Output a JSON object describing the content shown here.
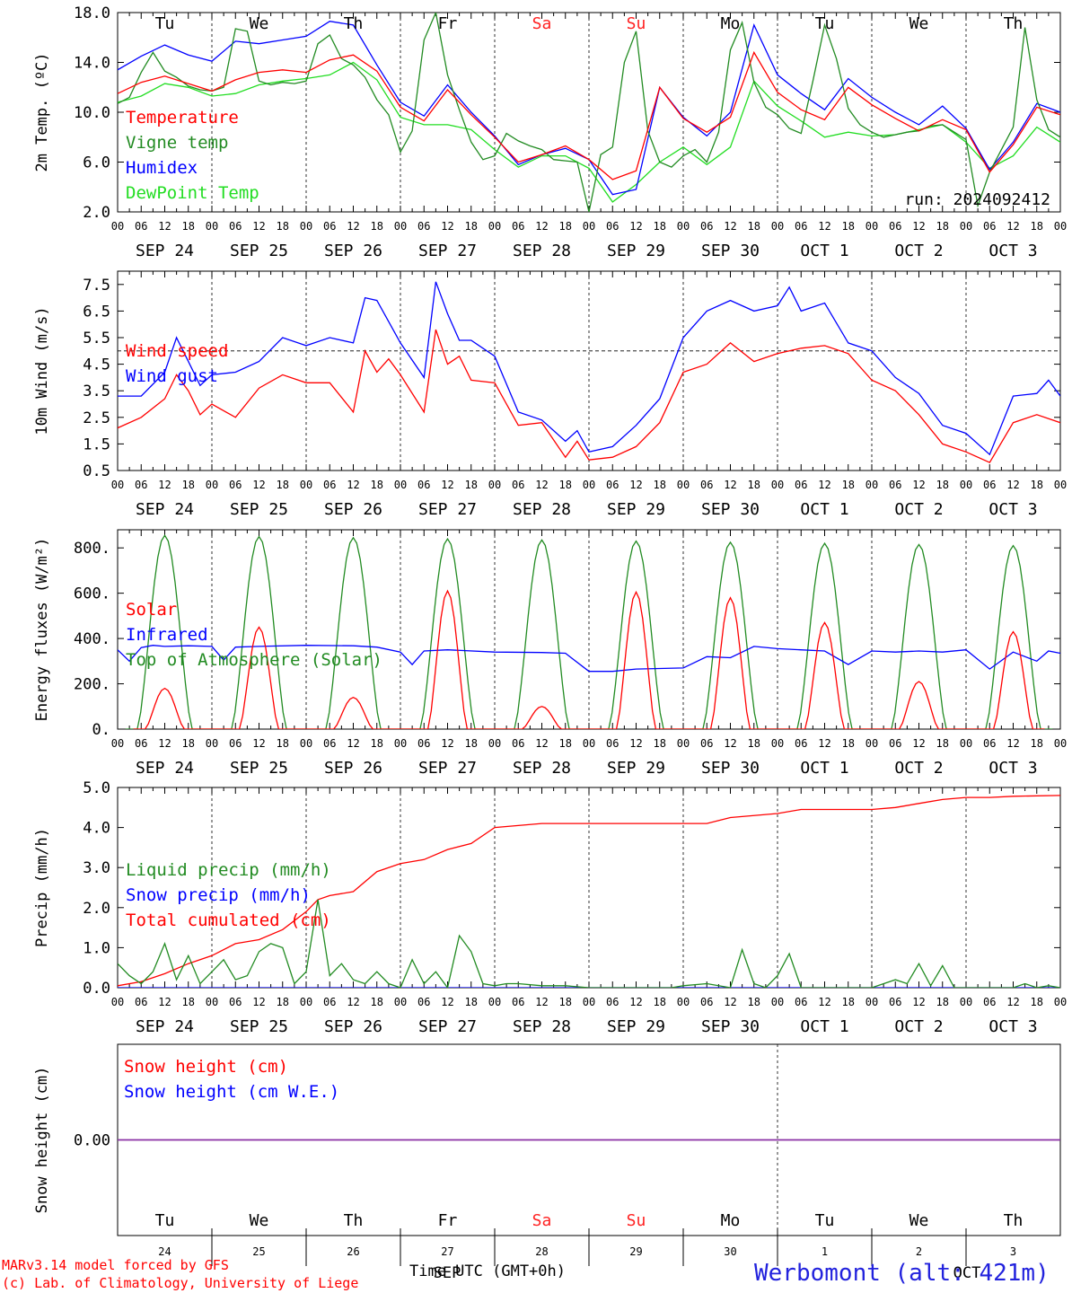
{
  "days_of_week": [
    "Tu",
    "We",
    "Th",
    "Fr",
    "Sa",
    "Su",
    "Mo",
    "Tu",
    "We",
    "Th"
  ],
  "date_labels": [
    "SEP 24",
    "SEP 25",
    "SEP 26",
    "SEP 27",
    "SEP 28",
    "SEP 29",
    "SEP 30",
    "OCT  1",
    "OCT  2",
    "OCT  3"
  ],
  "hour_ticks": [
    "00",
    "06",
    "12",
    "18"
  ],
  "weekend_color": "#ff2222",
  "run_label": "run: 2024092412",
  "footer": {
    "line1": "MARv3.14 model forced by GFS",
    "line2": "(c) Lab. of Climatology, University of Liege",
    "time_label": "Time UTC (GMT+0h)",
    "month_label_sep": "SEP",
    "month_label_oct": "OCT",
    "station": "Werbomont (alt: 421m)",
    "day_numbers": [
      "24",
      "25",
      "26",
      "27",
      "28",
      "29",
      "30",
      "1",
      "2",
      "3"
    ]
  },
  "chart_data": [
    {
      "type": "line",
      "ylabel": "2m Temp. (ºC)",
      "ylim": [
        2,
        18
      ],
      "yticks": [
        "2.0",
        "6.0",
        "10.0",
        "14.0",
        "18.0"
      ],
      "x_unit": "hours since SEP 24 00 UTC",
      "series": [
        {
          "name": "Temperature",
          "color": "#ff0000",
          "x": [
            0,
            6,
            12,
            18,
            24,
            30,
            36,
            42,
            48,
            54,
            60,
            66,
            72,
            78,
            84,
            90,
            96,
            102,
            108,
            114,
            120,
            126,
            132,
            138,
            144,
            150,
            156,
            162,
            168,
            174,
            180,
            186,
            192,
            198,
            204,
            210,
            216,
            222,
            228,
            234,
            240
          ],
          "y": [
            11.5,
            12.4,
            12.9,
            12.3,
            11.7,
            12.6,
            13.2,
            13.4,
            13.2,
            14.2,
            14.6,
            13.3,
            10.4,
            9.3,
            11.8,
            9.8,
            8.0,
            6.0,
            6.6,
            7.3,
            6.2,
            4.6,
            5.3,
            12.0,
            9.5,
            8.4,
            9.6,
            14.8,
            11.6,
            10.2,
            9.4,
            12.0,
            10.6,
            9.5,
            8.5,
            9.4,
            8.6,
            5.2,
            7.4,
            10.4,
            9.8
          ]
        },
        {
          "name": "Vigne temp",
          "color": "#228b22",
          "x": [
            0,
            3,
            6,
            9,
            12,
            15,
            18,
            21,
            24,
            27,
            30,
            33,
            36,
            39,
            42,
            45,
            48,
            51,
            54,
            57,
            60,
            63,
            66,
            69,
            72,
            75,
            78,
            81,
            84,
            87,
            90,
            93,
            96,
            99,
            102,
            105,
            108,
            111,
            114,
            117,
            120,
            123,
            126,
            129,
            132,
            135,
            138,
            141,
            144,
            147,
            150,
            153,
            156,
            159,
            162,
            165,
            168,
            171,
            174,
            177,
            180,
            183,
            186,
            189,
            192,
            195,
            198,
            201,
            204,
            207,
            210,
            213,
            216,
            219,
            222,
            225,
            228,
            231,
            234,
            237,
            240
          ],
          "y": [
            10.7,
            11.2,
            13.2,
            14.8,
            13.3,
            12.8,
            12.1,
            11.8,
            11.7,
            12.0,
            16.7,
            16.5,
            12.5,
            12.2,
            12.4,
            12.3,
            12.5,
            15.5,
            16.2,
            14.3,
            13.8,
            12.8,
            11.0,
            9.8,
            6.8,
            8.5,
            15.8,
            18.0,
            13.0,
            10.2,
            7.6,
            6.2,
            6.5,
            8.3,
            7.7,
            7.3,
            7.0,
            6.2,
            6.1,
            6.0,
            2.0,
            6.6,
            7.2,
            14.0,
            16.5,
            8.5,
            6.0,
            5.6,
            6.5,
            7.0,
            6.0,
            8.4,
            15.0,
            17.2,
            12.4,
            10.4,
            9.8,
            8.7,
            8.3,
            12.5,
            17.0,
            14.3,
            10.3,
            9.0,
            8.4,
            8.0,
            8.2,
            8.4,
            8.5,
            8.9,
            9.0,
            8.4,
            7.8,
            2.5,
            5.2,
            7.0,
            8.8,
            16.8,
            11.0,
            8.6,
            8.0
          ]
        },
        {
          "name": "Humidex",
          "color": "#0000ff",
          "x": [
            0,
            6,
            12,
            18,
            24,
            30,
            36,
            42,
            48,
            54,
            60,
            66,
            72,
            78,
            84,
            90,
            96,
            102,
            108,
            114,
            120,
            126,
            132,
            138,
            144,
            150,
            156,
            162,
            168,
            174,
            180,
            186,
            192,
            198,
            204,
            210,
            216,
            222,
            228,
            234,
            240
          ],
          "y": [
            13.4,
            14.5,
            15.4,
            14.6,
            14.1,
            15.7,
            15.5,
            15.8,
            16.1,
            17.3,
            17.0,
            13.8,
            10.8,
            9.7,
            12.2,
            10.0,
            8.1,
            5.8,
            6.6,
            7.1,
            6.2,
            3.4,
            3.8,
            12.0,
            9.6,
            8.1,
            10.0,
            17.0,
            13.0,
            11.5,
            10.2,
            12.7,
            11.2,
            10.0,
            9.0,
            10.5,
            8.7,
            5.4,
            7.6,
            10.7,
            10.0
          ]
        },
        {
          "name": "DewPoint Temp",
          "color": "#22dd22",
          "x": [
            0,
            6,
            12,
            18,
            24,
            30,
            36,
            42,
            48,
            54,
            60,
            66,
            72,
            78,
            84,
            90,
            96,
            102,
            108,
            114,
            120,
            126,
            132,
            138,
            144,
            150,
            156,
            162,
            168,
            174,
            180,
            186,
            192,
            198,
            204,
            210,
            216,
            222,
            228,
            234,
            240
          ],
          "y": [
            10.8,
            11.3,
            12.3,
            12.0,
            11.3,
            11.5,
            12.2,
            12.5,
            12.7,
            13.0,
            14.0,
            12.6,
            9.6,
            9.0,
            9.0,
            8.6,
            7.0,
            5.6,
            6.5,
            6.5,
            5.5,
            2.8,
            4.2,
            6.0,
            7.2,
            5.8,
            7.2,
            12.5,
            10.5,
            9.3,
            8.0,
            8.4,
            8.1,
            8.2,
            8.6,
            9.0,
            7.6,
            5.5,
            6.5,
            8.8,
            7.6
          ]
        }
      ]
    },
    {
      "type": "line",
      "ylabel": "10m Wind (m/s)",
      "ylim": [
        0.5,
        8
      ],
      "yticks": [
        "0.5",
        "1.5",
        "2.5",
        "3.5",
        "4.5",
        "5.5",
        "6.5",
        "7.5"
      ],
      "reference_line": 5,
      "x_unit": "hours since SEP 24 00 UTC",
      "series": [
        {
          "name": "Wind speed",
          "color": "#ff0000",
          "x": [
            0,
            6,
            12,
            15,
            18,
            21,
            24,
            30,
            36,
            42,
            48,
            54,
            60,
            63,
            66,
            69,
            72,
            78,
            81,
            84,
            87,
            90,
            96,
            102,
            108,
            114,
            117,
            120,
            126,
            132,
            138,
            144,
            150,
            156,
            162,
            168,
            174,
            180,
            186,
            192,
            198,
            204,
            210,
            216,
            222,
            228,
            234,
            240
          ],
          "y": [
            2.1,
            2.5,
            3.2,
            4.1,
            3.5,
            2.6,
            3.0,
            2.5,
            3.6,
            4.1,
            3.8,
            3.8,
            2.7,
            5.0,
            4.2,
            4.7,
            4.1,
            2.7,
            5.8,
            4.5,
            4.8,
            3.9,
            3.8,
            2.2,
            2.3,
            1.0,
            1.6,
            0.9,
            1.0,
            1.4,
            2.3,
            4.2,
            4.5,
            5.3,
            4.6,
            4.9,
            5.1,
            5.2,
            4.9,
            3.9,
            3.5,
            2.6,
            1.5,
            1.2,
            0.8,
            2.3,
            2.6,
            2.3
          ]
        },
        {
          "name": "Wind gust",
          "color": "#0000ff",
          "x": [
            0,
            6,
            12,
            15,
            18,
            21,
            24,
            30,
            36,
            42,
            48,
            54,
            60,
            63,
            66,
            69,
            72,
            78,
            81,
            84,
            87,
            90,
            96,
            102,
            108,
            114,
            117,
            120,
            126,
            132,
            138,
            144,
            150,
            156,
            162,
            168,
            171,
            174,
            180,
            186,
            192,
            198,
            204,
            210,
            216,
            222,
            228,
            234,
            237,
            240
          ],
          "y": [
            3.3,
            3.3,
            4.2,
            5.5,
            4.6,
            3.7,
            4.1,
            4.2,
            4.6,
            5.5,
            5.2,
            5.5,
            5.3,
            7.0,
            6.9,
            6.1,
            5.3,
            4.0,
            7.6,
            6.4,
            5.4,
            5.4,
            4.8,
            2.7,
            2.4,
            1.6,
            2.0,
            1.2,
            1.4,
            2.2,
            3.2,
            5.5,
            6.5,
            6.9,
            6.5,
            6.7,
            7.4,
            6.5,
            6.8,
            5.3,
            5.0,
            4.0,
            3.4,
            2.2,
            1.9,
            1.1,
            3.3,
            3.4,
            3.9,
            3.3
          ]
        }
      ]
    },
    {
      "type": "line",
      "ylabel": "Energy fluxes (W/m²)",
      "ylim": [
        0,
        880
      ],
      "yticks": [
        "0.",
        "200.",
        "400.",
        "600.",
        "800."
      ],
      "x_unit": "hours since SEP 24 00 UTC",
      "series": [
        {
          "name": "Solar",
          "color": "#ff0000",
          "peaks": [
            180,
            450,
            140,
            610,
            100,
            605,
            580,
            470,
            210,
            430
          ],
          "peak_hour": 12
        },
        {
          "name": "Infrared",
          "color": "#0000ff",
          "x": [
            0,
            3,
            6,
            9,
            12,
            18,
            24,
            27,
            30,
            36,
            48,
            60,
            66,
            72,
            75,
            78,
            84,
            96,
            108,
            114,
            120,
            126,
            132,
            144,
            150,
            156,
            162,
            168,
            180,
            186,
            192,
            198,
            204,
            210,
            216,
            222,
            228,
            234,
            237,
            240
          ],
          "y": [
            350,
            300,
            360,
            370,
            365,
            368,
            365,
            305,
            362,
            365,
            370,
            368,
            362,
            340,
            285,
            345,
            350,
            340,
            338,
            335,
            255,
            255,
            265,
            270,
            320,
            315,
            365,
            355,
            345,
            285,
            345,
            340,
            345,
            340,
            350,
            265,
            340,
            300,
            345,
            335
          ]
        },
        {
          "name": "Top of Atmosphere (Solar)",
          "color": "#228b22",
          "peaks": [
            855,
            850,
            845,
            840,
            835,
            830,
            825,
            820,
            815,
            810
          ],
          "peak_hour": 12
        }
      ]
    },
    {
      "type": "line",
      "ylabel": "Precip (mm/h)",
      "ylim": [
        0,
        5
      ],
      "yticks": [
        "0.0",
        "1.0",
        "2.0",
        "3.0",
        "4.0",
        "5.0"
      ],
      "x_unit": "hours since SEP 24 00 UTC",
      "series": [
        {
          "name": "Liquid precip (mm/h)",
          "color": "#228b22",
          "x": [
            0,
            3,
            6,
            9,
            12,
            15,
            18,
            21,
            24,
            27,
            30,
            33,
            36,
            39,
            42,
            45,
            48,
            51,
            54,
            57,
            60,
            63,
            66,
            69,
            72,
            75,
            78,
            81,
            84,
            87,
            90,
            93,
            96,
            99,
            102,
            108,
            114,
            120,
            126,
            132,
            138,
            141,
            144,
            150,
            156,
            159,
            162,
            165,
            168,
            171,
            174,
            177,
            180,
            186,
            192,
            198,
            201,
            204,
            207,
            210,
            213,
            216,
            219,
            222,
            225,
            228,
            231,
            234,
            237,
            240
          ],
          "y": [
            0.6,
            0.3,
            0.1,
            0.4,
            1.1,
            0.2,
            0.8,
            0.1,
            0.4,
            0.7,
            0.2,
            0.3,
            0.9,
            1.1,
            1.0,
            0.1,
            0.4,
            2.2,
            0.3,
            0.6,
            0.2,
            0.1,
            0.4,
            0.1,
            0.0,
            0.7,
            0.1,
            0.4,
            0.0,
            1.3,
            0.9,
            0.1,
            0.05,
            0.1,
            0.1,
            0.05,
            0.05,
            0.0,
            0.0,
            0.0,
            0.0,
            0.0,
            0.05,
            0.1,
            0.0,
            0.95,
            0.1,
            0.0,
            0.3,
            0.85,
            0.0,
            0.0,
            0.0,
            0.0,
            0.0,
            0.2,
            0.1,
            0.6,
            0.05,
            0.55,
            0.0,
            0.0,
            0.0,
            0.0,
            0.0,
            0.0,
            0.1,
            0.0,
            0.05,
            0.0
          ]
        },
        {
          "name": "Snow precip (mm/h)",
          "color": "#0000ff",
          "x": [
            0,
            240
          ],
          "y": [
            0,
            0
          ]
        },
        {
          "name": "Total cumulated (cm)",
          "color": "#ff0000",
          "x": [
            0,
            6,
            12,
            18,
            24,
            30,
            36,
            42,
            48,
            51,
            54,
            60,
            66,
            72,
            78,
            84,
            90,
            96,
            108,
            120,
            132,
            144,
            150,
            156,
            168,
            174,
            180,
            186,
            192,
            198,
            204,
            210,
            216,
            222,
            228,
            240
          ],
          "y": [
            0.05,
            0.15,
            0.35,
            0.6,
            0.8,
            1.1,
            1.2,
            1.45,
            1.9,
            2.2,
            2.3,
            2.4,
            2.9,
            3.1,
            3.2,
            3.45,
            3.6,
            4.0,
            4.1,
            4.1,
            4.1,
            4.1,
            4.1,
            4.25,
            4.35,
            4.45,
            4.45,
            4.45,
            4.45,
            4.5,
            4.6,
            4.7,
            4.75,
            4.75,
            4.78,
            4.8
          ]
        }
      ]
    },
    {
      "type": "line",
      "ylabel": "Snow height (cm)",
      "ylim": [
        -1,
        1
      ],
      "yticks": [
        "0.00"
      ],
      "x_unit": "hours since SEP 24 00 UTC",
      "series": [
        {
          "name": "Snow height (cm)",
          "color": "#ff0000",
          "x": [
            0,
            240
          ],
          "y": [
            0,
            0
          ]
        },
        {
          "name": "Snow height (cm W.E.)",
          "color": "#0000ff",
          "x": [
            0,
            240
          ],
          "y": [
            0,
            0
          ]
        }
      ]
    }
  ]
}
